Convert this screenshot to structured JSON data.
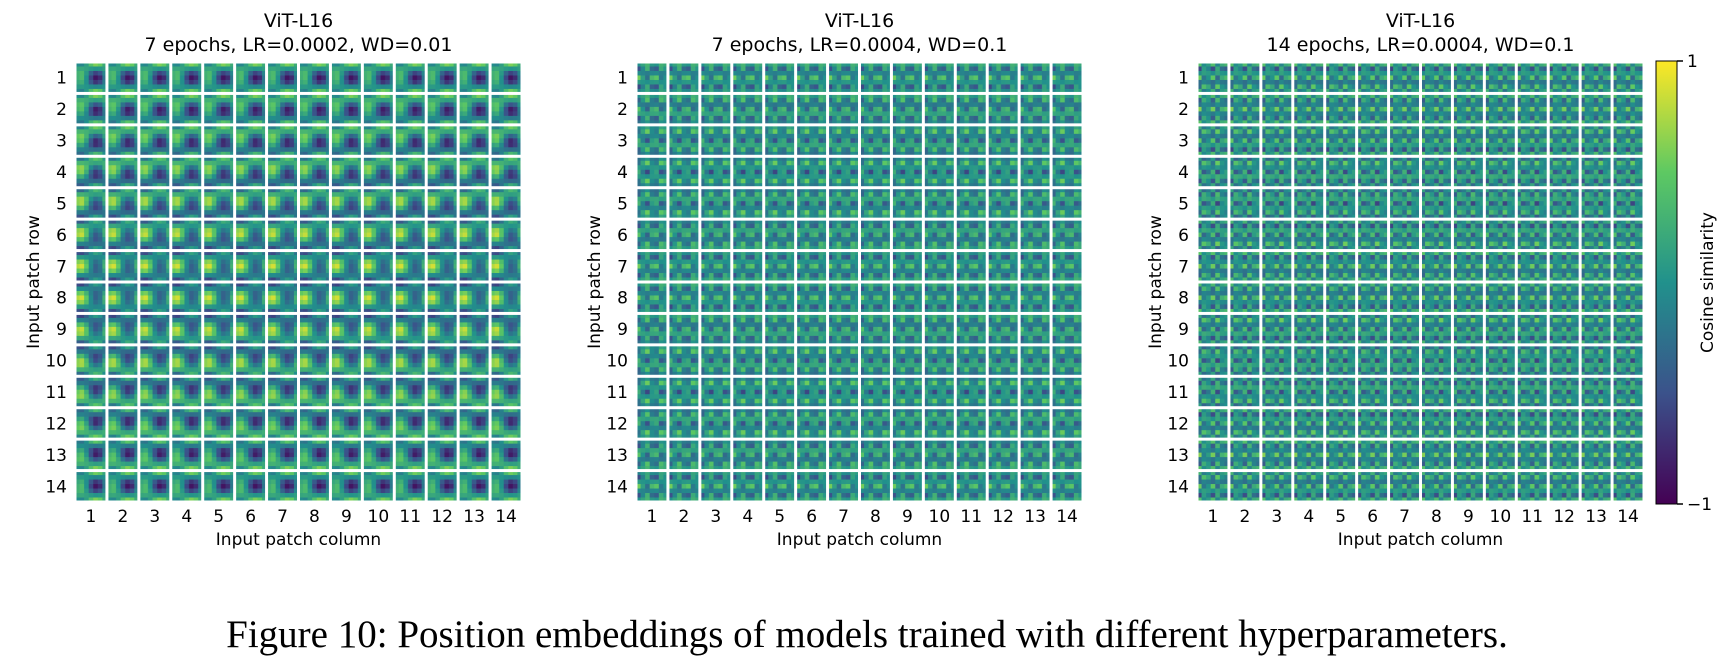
{
  "caption": "Figure 10: Position embeddings of models trained with different hyperparameters.",
  "chart_data": {
    "type": "heatmap",
    "colormap": "viridis",
    "colorbar": {
      "label": "Cosine similarity",
      "min": -1,
      "max": 1,
      "tick_labels": [
        "1",
        "−1"
      ]
    },
    "panels": [
      {
        "title": "ViT-L16",
        "subtitle": "7 epochs, LR=0.0002, WD=0.01",
        "xlabel": "Input patch column",
        "ylabel": "Input patch row",
        "frequency": 1,
        "contrast": 1.0
      },
      {
        "title": "ViT-L16",
        "subtitle": "7 epochs, LR=0.0004, WD=0.1",
        "xlabel": "Input patch column",
        "ylabel": "Input patch row",
        "frequency": 2,
        "contrast": 0.65
      },
      {
        "title": "ViT-L16",
        "subtitle": "14 epochs, LR=0.0004, WD=0.1",
        "xlabel": "Input patch column",
        "ylabel": "Input patch row",
        "frequency": 2.5,
        "contrast": 0.7
      }
    ],
    "rows": [
      "1",
      "2",
      "3",
      "4",
      "5",
      "6",
      "7",
      "8",
      "9",
      "10",
      "11",
      "12",
      "13",
      "14"
    ],
    "columns": [
      "1",
      "2",
      "3",
      "4",
      "5",
      "6",
      "7",
      "8",
      "9",
      "10",
      "11",
      "12",
      "13",
      "14"
    ]
  }
}
